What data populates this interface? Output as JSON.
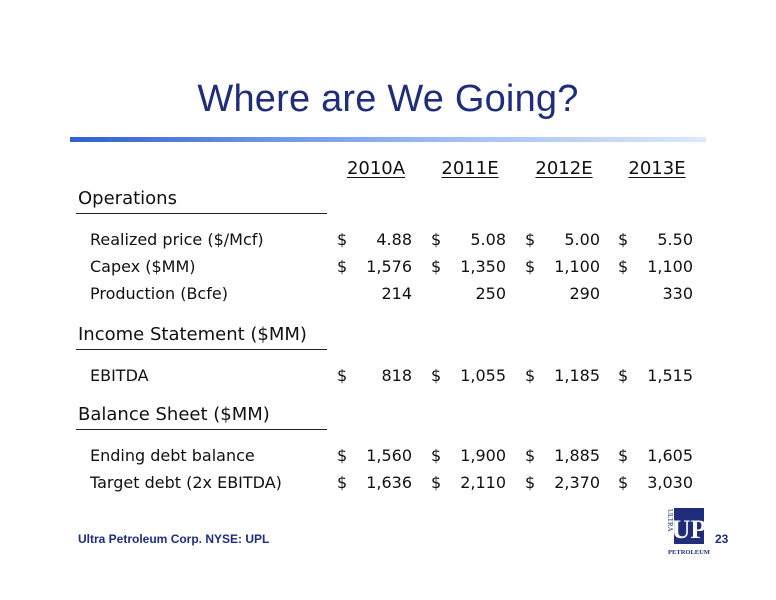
{
  "title": "Where are We Going?",
  "columns": [
    "2010A",
    "2011E",
    "2012E",
    "2013E"
  ],
  "sections": [
    {
      "name": "Operations",
      "rows": [
        {
          "label": "Realized price ($/Mcf)",
          "dollar": true,
          "values": [
            "4.88",
            "5.08",
            "5.00",
            "5.50"
          ]
        },
        {
          "label": "Capex ($MM)",
          "dollar": true,
          "values": [
            "1,576",
            "1,350",
            "1,100",
            "1,100"
          ]
        },
        {
          "label": "Production (Bcfe)",
          "dollar": false,
          "values": [
            "214",
            "250",
            "290",
            "330"
          ]
        }
      ]
    },
    {
      "name": "Income Statement ($MM)",
      "rows": [
        {
          "label": "EBITDA",
          "dollar": true,
          "values": [
            "818",
            "1,055",
            "1,185",
            "1,515"
          ]
        }
      ]
    },
    {
      "name": "Balance Sheet ($MM)",
      "rows": [
        {
          "label": "Ending debt balance",
          "dollar": true,
          "values": [
            "1,560",
            "1,900",
            "1,885",
            "1,605"
          ]
        },
        {
          "label": "Target debt (2x EBITDA)",
          "dollar": true,
          "values": [
            "1,636",
            "2,110",
            "2,370",
            "3,030"
          ]
        }
      ]
    }
  ],
  "footer": {
    "company": "Ultra Petroleum Corp. NYSE: UPL",
    "page": "23",
    "logo_text": {
      "top": "ULTRA",
      "mark": "UP",
      "bottom": "PETROLEUM"
    }
  },
  "colors": {
    "title": "#1f2d7a",
    "rule": "#2f5fd2",
    "text": "#111111"
  }
}
